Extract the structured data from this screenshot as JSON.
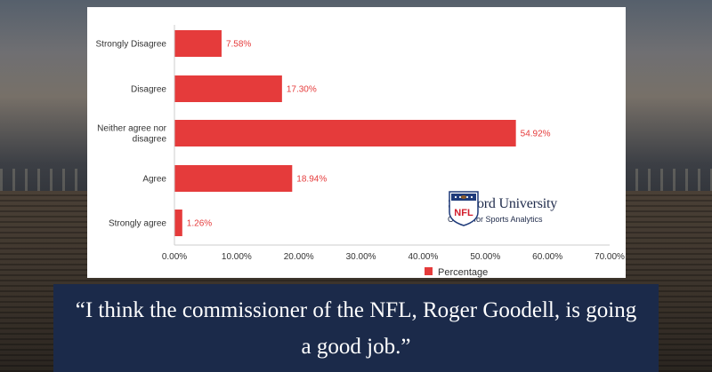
{
  "chart_data": {
    "type": "bar",
    "orientation": "horizontal",
    "categories": [
      "Strongly Disagree",
      "Disagree",
      "Neither agree nor disagree",
      "Agree",
      "Strongly agree"
    ],
    "series": [
      {
        "name": "Percentage",
        "values": [
          7.58,
          17.3,
          54.92,
          18.94,
          1.26
        ],
        "color": "#e53b3b"
      }
    ],
    "value_labels": [
      "7.58%",
      "17.30%",
      "54.92%",
      "18.94%",
      "1.26%"
    ],
    "xlim": [
      0,
      70
    ],
    "x_ticks": [
      0,
      10,
      20,
      30,
      40,
      50,
      60,
      70
    ],
    "x_tick_labels": [
      "0.00%",
      "10.00%",
      "20.00%",
      "30.00%",
      "40.00%",
      "50.00%",
      "60.00%",
      "70.00%"
    ],
    "legend": {
      "position": "bottom",
      "label": "Percentage"
    },
    "grid": false
  },
  "logo": {
    "name": "Samford University",
    "subtitle": "Center for Sports Analytics",
    "nfl_text": "NFL"
  },
  "quote": {
    "text": "“I think the commissioner of the NFL, Roger Goodell, is going a good job.”"
  },
  "colors": {
    "bar": "#e53b3b",
    "quote_bg": "#1b2a4a",
    "logo_navy": "#1e2a4a"
  }
}
